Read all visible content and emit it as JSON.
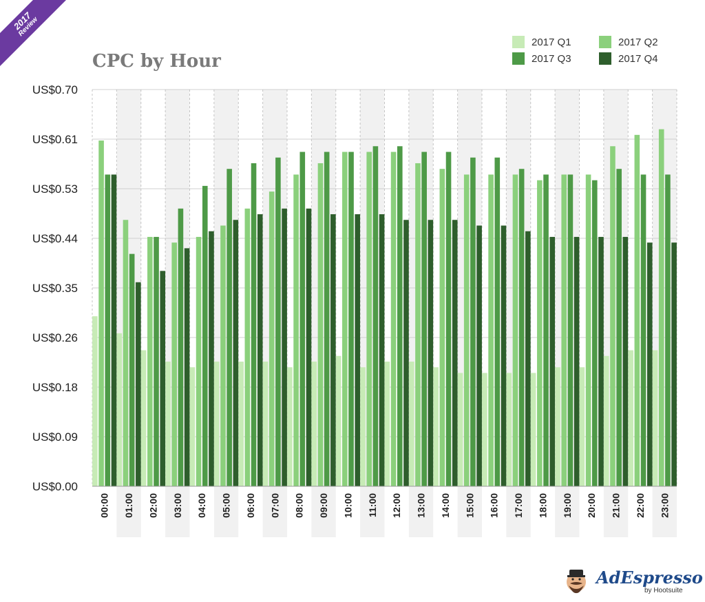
{
  "badge": {
    "year": "2017",
    "label": "Review"
  },
  "brand": {
    "name": "AdEspresso",
    "byline": "by Hootsuite"
  },
  "colors": {
    "q1": "#c7ebb6",
    "q2": "#8bd07c",
    "q3": "#4e9a47",
    "q4": "#2e5e2c"
  },
  "chart_data": {
    "type": "bar",
    "title": "CPC by Hour",
    "xlabel": "",
    "ylabel": "",
    "ylim": [
      0,
      0.7
    ],
    "yticks": [
      "US$0.00",
      "US$0.09",
      "US$0.18",
      "US$0.26",
      "US$0.35",
      "US$0.44",
      "US$0.53",
      "US$0.61",
      "US$0.70"
    ],
    "categories": [
      "00:00",
      "01:00",
      "02:00",
      "03:00",
      "04:00",
      "05:00",
      "06:00",
      "07:00",
      "08:00",
      "09:00",
      "10:00",
      "11:00",
      "12:00",
      "13:00",
      "14:00",
      "15:00",
      "16:00",
      "17:00",
      "18:00",
      "19:00",
      "20:00",
      "21:00",
      "22:00",
      "23:00"
    ],
    "legend_position": "top-right",
    "series": [
      {
        "name": "2017 Q1",
        "values": [
          0.3,
          0.27,
          0.24,
          0.22,
          0.21,
          0.22,
          0.22,
          0.22,
          0.21,
          0.22,
          0.23,
          0.21,
          0.22,
          0.22,
          0.21,
          0.2,
          0.2,
          0.2,
          0.2,
          0.21,
          0.21,
          0.23,
          0.24,
          0.24
        ]
      },
      {
        "name": "2017 Q2",
        "values": [
          0.61,
          0.47,
          0.44,
          0.43,
          0.44,
          0.46,
          0.49,
          0.52,
          0.55,
          0.57,
          0.59,
          0.59,
          0.59,
          0.57,
          0.56,
          0.55,
          0.55,
          0.55,
          0.54,
          0.55,
          0.55,
          0.6,
          0.62,
          0.63
        ]
      },
      {
        "name": "2017 Q3",
        "values": [
          0.55,
          0.41,
          0.44,
          0.49,
          0.53,
          0.56,
          0.57,
          0.58,
          0.59,
          0.59,
          0.59,
          0.6,
          0.6,
          0.59,
          0.59,
          0.58,
          0.58,
          0.56,
          0.55,
          0.55,
          0.54,
          0.56,
          0.55,
          0.55
        ]
      },
      {
        "name": "2017 Q4",
        "values": [
          0.55,
          0.36,
          0.38,
          0.42,
          0.45,
          0.47,
          0.48,
          0.49,
          0.49,
          0.48,
          0.48,
          0.48,
          0.47,
          0.47,
          0.47,
          0.46,
          0.46,
          0.45,
          0.44,
          0.44,
          0.44,
          0.44,
          0.43,
          0.43
        ]
      }
    ]
  }
}
